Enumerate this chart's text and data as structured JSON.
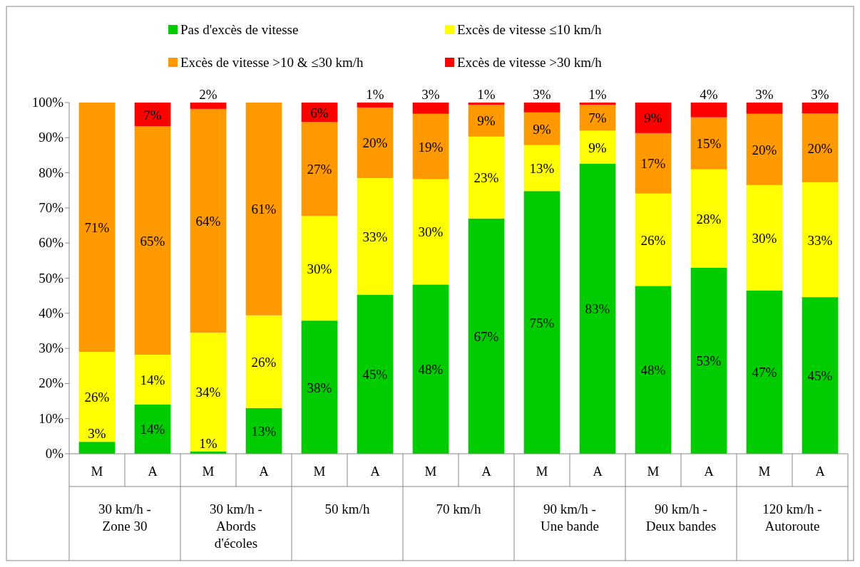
{
  "chart_data": {
    "type": "bar",
    "stacked": true,
    "legend": "top",
    "categories": [
      "M",
      "A",
      "M",
      "A",
      "M",
      "A",
      "M",
      "A",
      "M",
      "A",
      "M",
      "A",
      "M",
      "A"
    ],
    "annotations": [
      "30 km/h - Zone 30",
      "30 km/h - Abords d'écoles",
      "50 km/h",
      "70 km/h",
      "90 km/h - Une bande",
      "90 km/h - Deux bandes",
      "120 km/h - Autoroute"
    ],
    "ylim": [
      0,
      100
    ],
    "yticks": [
      {
        "value": 0,
        "label": "0%"
      },
      {
        "value": 10,
        "label": "10%"
      },
      {
        "value": 20,
        "label": "20%"
      },
      {
        "value": 30,
        "label": "30%"
      },
      {
        "value": 40,
        "label": "40%"
      },
      {
        "value": 50,
        "label": "50%"
      },
      {
        "value": 60,
        "label": "60%"
      },
      {
        "value": 70,
        "label": "70%"
      },
      {
        "value": 80,
        "label": "80%"
      },
      {
        "value": 90,
        "label": "90%"
      },
      {
        "value": 100,
        "label": "100%"
      }
    ],
    "series": [
      {
        "name": "Pas d'excès de vitesse",
        "color": "#00cc00",
        "values": [
          3.4,
          14.0,
          0.7,
          13.0,
          37.9,
          45.3,
          48.2,
          67.0,
          74.8,
          82.6,
          47.8,
          53.0,
          46.5,
          44.6
        ],
        "value_labels": [
          "3%",
          "14%",
          "1%",
          "13%",
          "38%",
          "45%",
          "48%",
          "67%",
          "75%",
          "83%",
          "48%",
          "53%",
          "47%",
          "45%"
        ]
      },
      {
        "name": "Excès de vitesse ≤10 km/h",
        "color": "#ffff00",
        "values": [
          25.6,
          14.2,
          33.8,
          26.4,
          29.8,
          33.2,
          30.0,
          23.3,
          13.1,
          9.4,
          26.3,
          28.0,
          30.0,
          32.7
        ],
        "value_labels": [
          "26%",
          "14%",
          "34%",
          "26%",
          "30%",
          "33%",
          "30%",
          "23%",
          "13%",
          "9%",
          "26%",
          "28%",
          "30%",
          "33%"
        ]
      },
      {
        "name": "Excès de vitesse >10 & ≤30 km/h",
        "color": "#ff9900",
        "values": [
          71.0,
          65.1,
          63.7,
          60.6,
          26.8,
          20.1,
          18.6,
          9.1,
          9.3,
          7.4,
          17.2,
          14.8,
          20.3,
          19.6
        ],
        "value_labels": [
          "71%",
          "65%",
          "64%",
          "61%",
          "27%",
          "20%",
          "19%",
          "9%",
          "9%",
          "7%",
          "17%",
          "15%",
          "20%",
          "20%"
        ]
      },
      {
        "name": "Excès de vitesse >30 km/h",
        "color": "#ff0000",
        "values": [
          null,
          6.7,
          1.8,
          null,
          5.5,
          1.4,
          3.2,
          0.6,
          2.8,
          0.6,
          8.7,
          4.2,
          3.2,
          3.1
        ],
        "value_labels": [
          null,
          "7%",
          "2%",
          null,
          "6%",
          "1%",
          "3%",
          "1%",
          "3%",
          "1%",
          "9%",
          "4%",
          "3%",
          "3%"
        ]
      }
    ]
  }
}
